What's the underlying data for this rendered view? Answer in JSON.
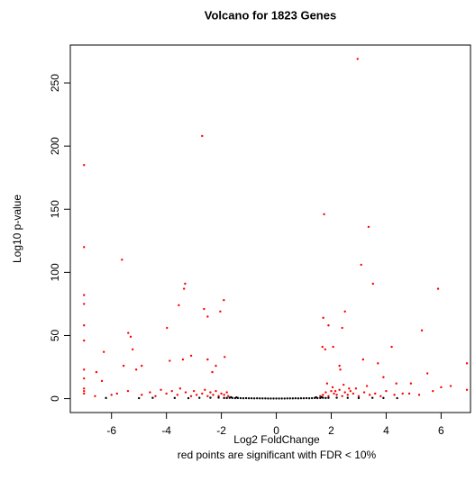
{
  "chart_data": {
    "type": "scatter",
    "title": "Volcano for 1823 Genes",
    "x_label": "Log2 FoldChange",
    "subtitle": "red points are significant with FDR < 10%",
    "y_label": "Log10 p-value",
    "xlim": [
      -7.5,
      7.07
    ],
    "ylim": [
      -11,
      280
    ],
    "xticks": [
      -6,
      -4,
      -2,
      0,
      2,
      4,
      6
    ],
    "yticks": [
      0,
      50,
      100,
      150,
      200,
      250
    ],
    "series": [
      {
        "color": "#ff0000",
        "x": [
          -7,
          -7,
          -7,
          -7,
          -7,
          -7,
          -7,
          -7,
          -7,
          -7,
          -7,
          -2.7,
          2.96,
          1.74,
          3.36,
          3.09,
          3.52,
          -5.62,
          -3.32,
          -3.36,
          -1.91,
          5.89,
          -2.63,
          -2.5,
          -3.55,
          -2.04,
          -3.98,
          -5.39,
          -5.3,
          -6.28,
          -5.23,
          1.71,
          2.4,
          2.5,
          1.9,
          1.68,
          1.78,
          2.07,
          4.2,
          5.3,
          6.94,
          6.94,
          -3.4,
          -3.1,
          -2.5,
          -1.88,
          -3.88,
          2.3,
          2.33,
          3.16,
          3.7,
          3.9,
          -5.56,
          -4.9,
          -6.35,
          -6.55,
          -5.1,
          -2.33,
          -2.2,
          5.5,
          4.9,
          4.37,
          6.35,
          6.0,
          5.7,
          5.2,
          4.84,
          -4.9,
          -4.6,
          -4.4,
          -4.2,
          -4.0,
          -3.8,
          -3.6,
          -3.5,
          -3.3,
          -3.1,
          -3.0,
          -2.9,
          -2.7,
          -2.6,
          -2.5,
          -2.4,
          -2.3,
          -2.2,
          -2.1,
          -2.0,
          -1.9,
          -1.8,
          -1.75,
          -5.8,
          -6.0,
          -5.4,
          -6.6,
          1.6,
          1.7,
          1.8,
          1.9,
          2.0,
          2.1,
          2.2,
          2.3,
          2.4,
          2.5,
          2.6,
          2.7,
          2.8,
          2.9,
          3.0,
          3.2,
          3.4,
          3.6,
          3.8,
          4.0,
          4.3,
          4.6,
          2.05,
          2.45,
          2.65,
          3.3,
          1.85,
          2.15
        ],
        "values": [
          185,
          120,
          82,
          75,
          58,
          46,
          23,
          16,
          8,
          6,
          4,
          208,
          269,
          146,
          136,
          106,
          91,
          110,
          91,
          87,
          78,
          87,
          71,
          65,
          74,
          69,
          56,
          52,
          49,
          37,
          39,
          64,
          56,
          69,
          58,
          41,
          39,
          41,
          41,
          54,
          28,
          7,
          31,
          34,
          31,
          33,
          30,
          26,
          23,
          31,
          28,
          17,
          26,
          26,
          14,
          21,
          23,
          21,
          26,
          20,
          12,
          12,
          10,
          9,
          6,
          3,
          4,
          3,
          5,
          2,
          7,
          4,
          6,
          3,
          8,
          5,
          2,
          6,
          3,
          4,
          7,
          2,
          5,
          3,
          6,
          2,
          4,
          3,
          5,
          2,
          4,
          3,
          6,
          2,
          2,
          3,
          5,
          2,
          6,
          4,
          3,
          7,
          2,
          5,
          3,
          6,
          4,
          8,
          2,
          5,
          3,
          4,
          2,
          6,
          3,
          4,
          9,
          11,
          8,
          10,
          12,
          6
        ]
      },
      {
        "color": "#000000",
        "x": [
          -1.9,
          -1.8,
          -1.7,
          -1.6,
          -1.5,
          -1.4,
          -1.3,
          -1.2,
          -1.1,
          -1.0,
          -0.9,
          -0.8,
          -0.7,
          -0.6,
          -0.5,
          -0.4,
          -0.3,
          -0.2,
          -0.1,
          0,
          0.1,
          0.2,
          0.3,
          0.4,
          0.5,
          0.6,
          0.7,
          0.8,
          0.9,
          1.0,
          1.1,
          1.2,
          1.3,
          1.4,
          1.5,
          1.6,
          1.7,
          1.8,
          1.9,
          -6.2,
          -5.0,
          -4.5,
          -3.7,
          -3.2,
          -2.8,
          -2.4,
          -2.1,
          2.2,
          2.6,
          3.0,
          3.5,
          3.9,
          4.4,
          -1.65,
          1.65,
          -1.45,
          1.45
        ],
        "values": [
          0.5,
          0.5,
          0.6,
          0.5,
          0.4,
          0.5,
          0.4,
          0.3,
          0.4,
          0.3,
          0.3,
          0.2,
          0.3,
          0.2,
          0.2,
          0.2,
          0.1,
          0.1,
          0.1,
          0.1,
          0.1,
          0.1,
          0.1,
          0.2,
          0.2,
          0.2,
          0.3,
          0.2,
          0.3,
          0.3,
          0.4,
          0.3,
          0.4,
          0.5,
          0.4,
          0.5,
          0.6,
          0.5,
          0.6,
          0.5,
          0.4,
          0.6,
          0.5,
          0.4,
          0.6,
          0.7,
          0.8,
          0.7,
          0.6,
          0.5,
          0.6,
          0.5,
          0.4,
          1.2,
          1.3,
          1.0,
          1.1
        ]
      }
    ]
  }
}
